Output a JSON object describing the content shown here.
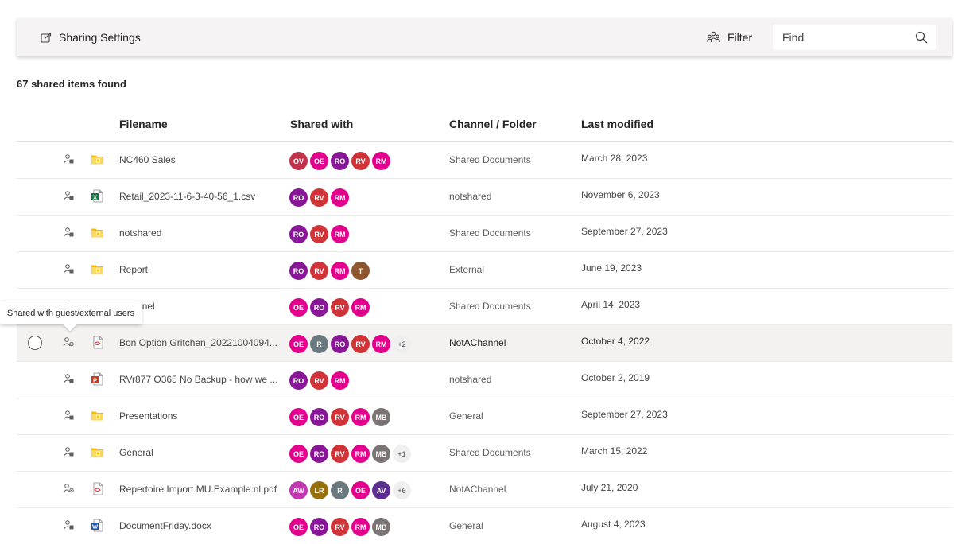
{
  "toolbar": {
    "settings_label": "Sharing Settings",
    "filter_label": "Filter",
    "search_placeholder": "Find",
    "search_value": "",
    "icons": {
      "settings": "share-settings-icon",
      "filter": "people-filter-icon",
      "search": "search-icon"
    }
  },
  "summary": {
    "count_text": "67 shared items found"
  },
  "columns": {
    "filename": "Filename",
    "shared_with": "Shared with",
    "channel": "Channel / Folder",
    "modified": "Last modified"
  },
  "tooltip": {
    "text": "Shared with guest/external users"
  },
  "avatar_colors": {
    "OV": "#c4314b",
    "OE": "#e3008c",
    "RO": "#881798",
    "RV": "#d13438",
    "RM": "#e3008c",
    "T": "#8e562e",
    "R": "#69797e",
    "MB": "#7a7574",
    "AW": "#c239b3",
    "LR": "#986f0b",
    "AV": "#5c2e91"
  },
  "type_colors": {
    "folder": "#ffb900",
    "csv": "#107c41",
    "pdf": "#d13438",
    "pptx": "#c43e1c",
    "docx": "#185abd"
  },
  "rows": [
    {
      "selected": false,
      "share_icon": "org-share-icon",
      "type": "folder",
      "name": "NC460 Sales",
      "avatars": [
        "OV",
        "OE",
        "RO",
        "RV",
        "RM"
      ],
      "more": "",
      "folder": "Shared Documents",
      "modified": "March 28, 2023"
    },
    {
      "selected": false,
      "share_icon": "org-share-icon",
      "type": "csv",
      "name": "Retail_2023-11-6-3-40-56_1.csv",
      "avatars": [
        "RO",
        "RV",
        "RM"
      ],
      "more": "",
      "folder": "notshared",
      "modified": "November 6, 2023"
    },
    {
      "selected": false,
      "share_icon": "org-share-icon",
      "type": "folder",
      "name": "notshared",
      "avatars": [
        "RO",
        "RV",
        "RM"
      ],
      "more": "",
      "folder": "Shared Documents",
      "modified": "September 27, 2023"
    },
    {
      "selected": false,
      "share_icon": "org-share-icon",
      "type": "folder",
      "name": "Report",
      "avatars": [
        "RO",
        "RV",
        "RM",
        "T"
      ],
      "more": "",
      "folder": "External",
      "modified": "June 19, 2023"
    },
    {
      "selected": false,
      "share_icon": "org-share-icon",
      "type": "folder",
      "name": "Channel",
      "avatars": [
        "OE",
        "RO",
        "RV",
        "RM"
      ],
      "more": "",
      "folder": "Shared Documents",
      "modified": "April 14, 2023"
    },
    {
      "selected": true,
      "share_icon": "guest-share-icon",
      "type": "pdf",
      "name": "Bon Option Gritchen_20221004094...",
      "avatars": [
        "OE",
        "R",
        "RO",
        "RV",
        "RM"
      ],
      "more": "+2",
      "folder": "NotAChannel",
      "modified": "October 4, 2022"
    },
    {
      "selected": false,
      "share_icon": "org-share-icon",
      "type": "pptx",
      "name": "RVr877 O365 No Backup - how we ...",
      "avatars": [
        "RO",
        "RV",
        "RM"
      ],
      "more": "",
      "folder": "notshared",
      "modified": "October 2, 2019"
    },
    {
      "selected": false,
      "share_icon": "org-share-icon",
      "type": "folder",
      "name": "Presentations",
      "avatars": [
        "OE",
        "RO",
        "RV",
        "RM",
        "MB"
      ],
      "more": "",
      "folder": "General",
      "modified": "September 27, 2023"
    },
    {
      "selected": false,
      "share_icon": "org-share-icon",
      "type": "folder",
      "name": "General",
      "avatars": [
        "OE",
        "RO",
        "RV",
        "RM",
        "MB"
      ],
      "more": "+1",
      "folder": "Shared Documents",
      "modified": "March 15, 2022"
    },
    {
      "selected": false,
      "share_icon": "guest-share-icon",
      "type": "pdf",
      "name": "Repertoire.Import.MU.Example.nl.pdf",
      "avatars": [
        "AW",
        "LR",
        "R",
        "OE",
        "AV"
      ],
      "more": "+6",
      "folder": "NotAChannel",
      "modified": "July 21, 2020"
    },
    {
      "selected": false,
      "share_icon": "org-share-icon",
      "type": "docx",
      "name": "DocumentFriday.docx",
      "avatars": [
        "OE",
        "RO",
        "RV",
        "RM",
        "MB"
      ],
      "more": "",
      "folder": "General",
      "modified": "August 4, 2023"
    }
  ]
}
